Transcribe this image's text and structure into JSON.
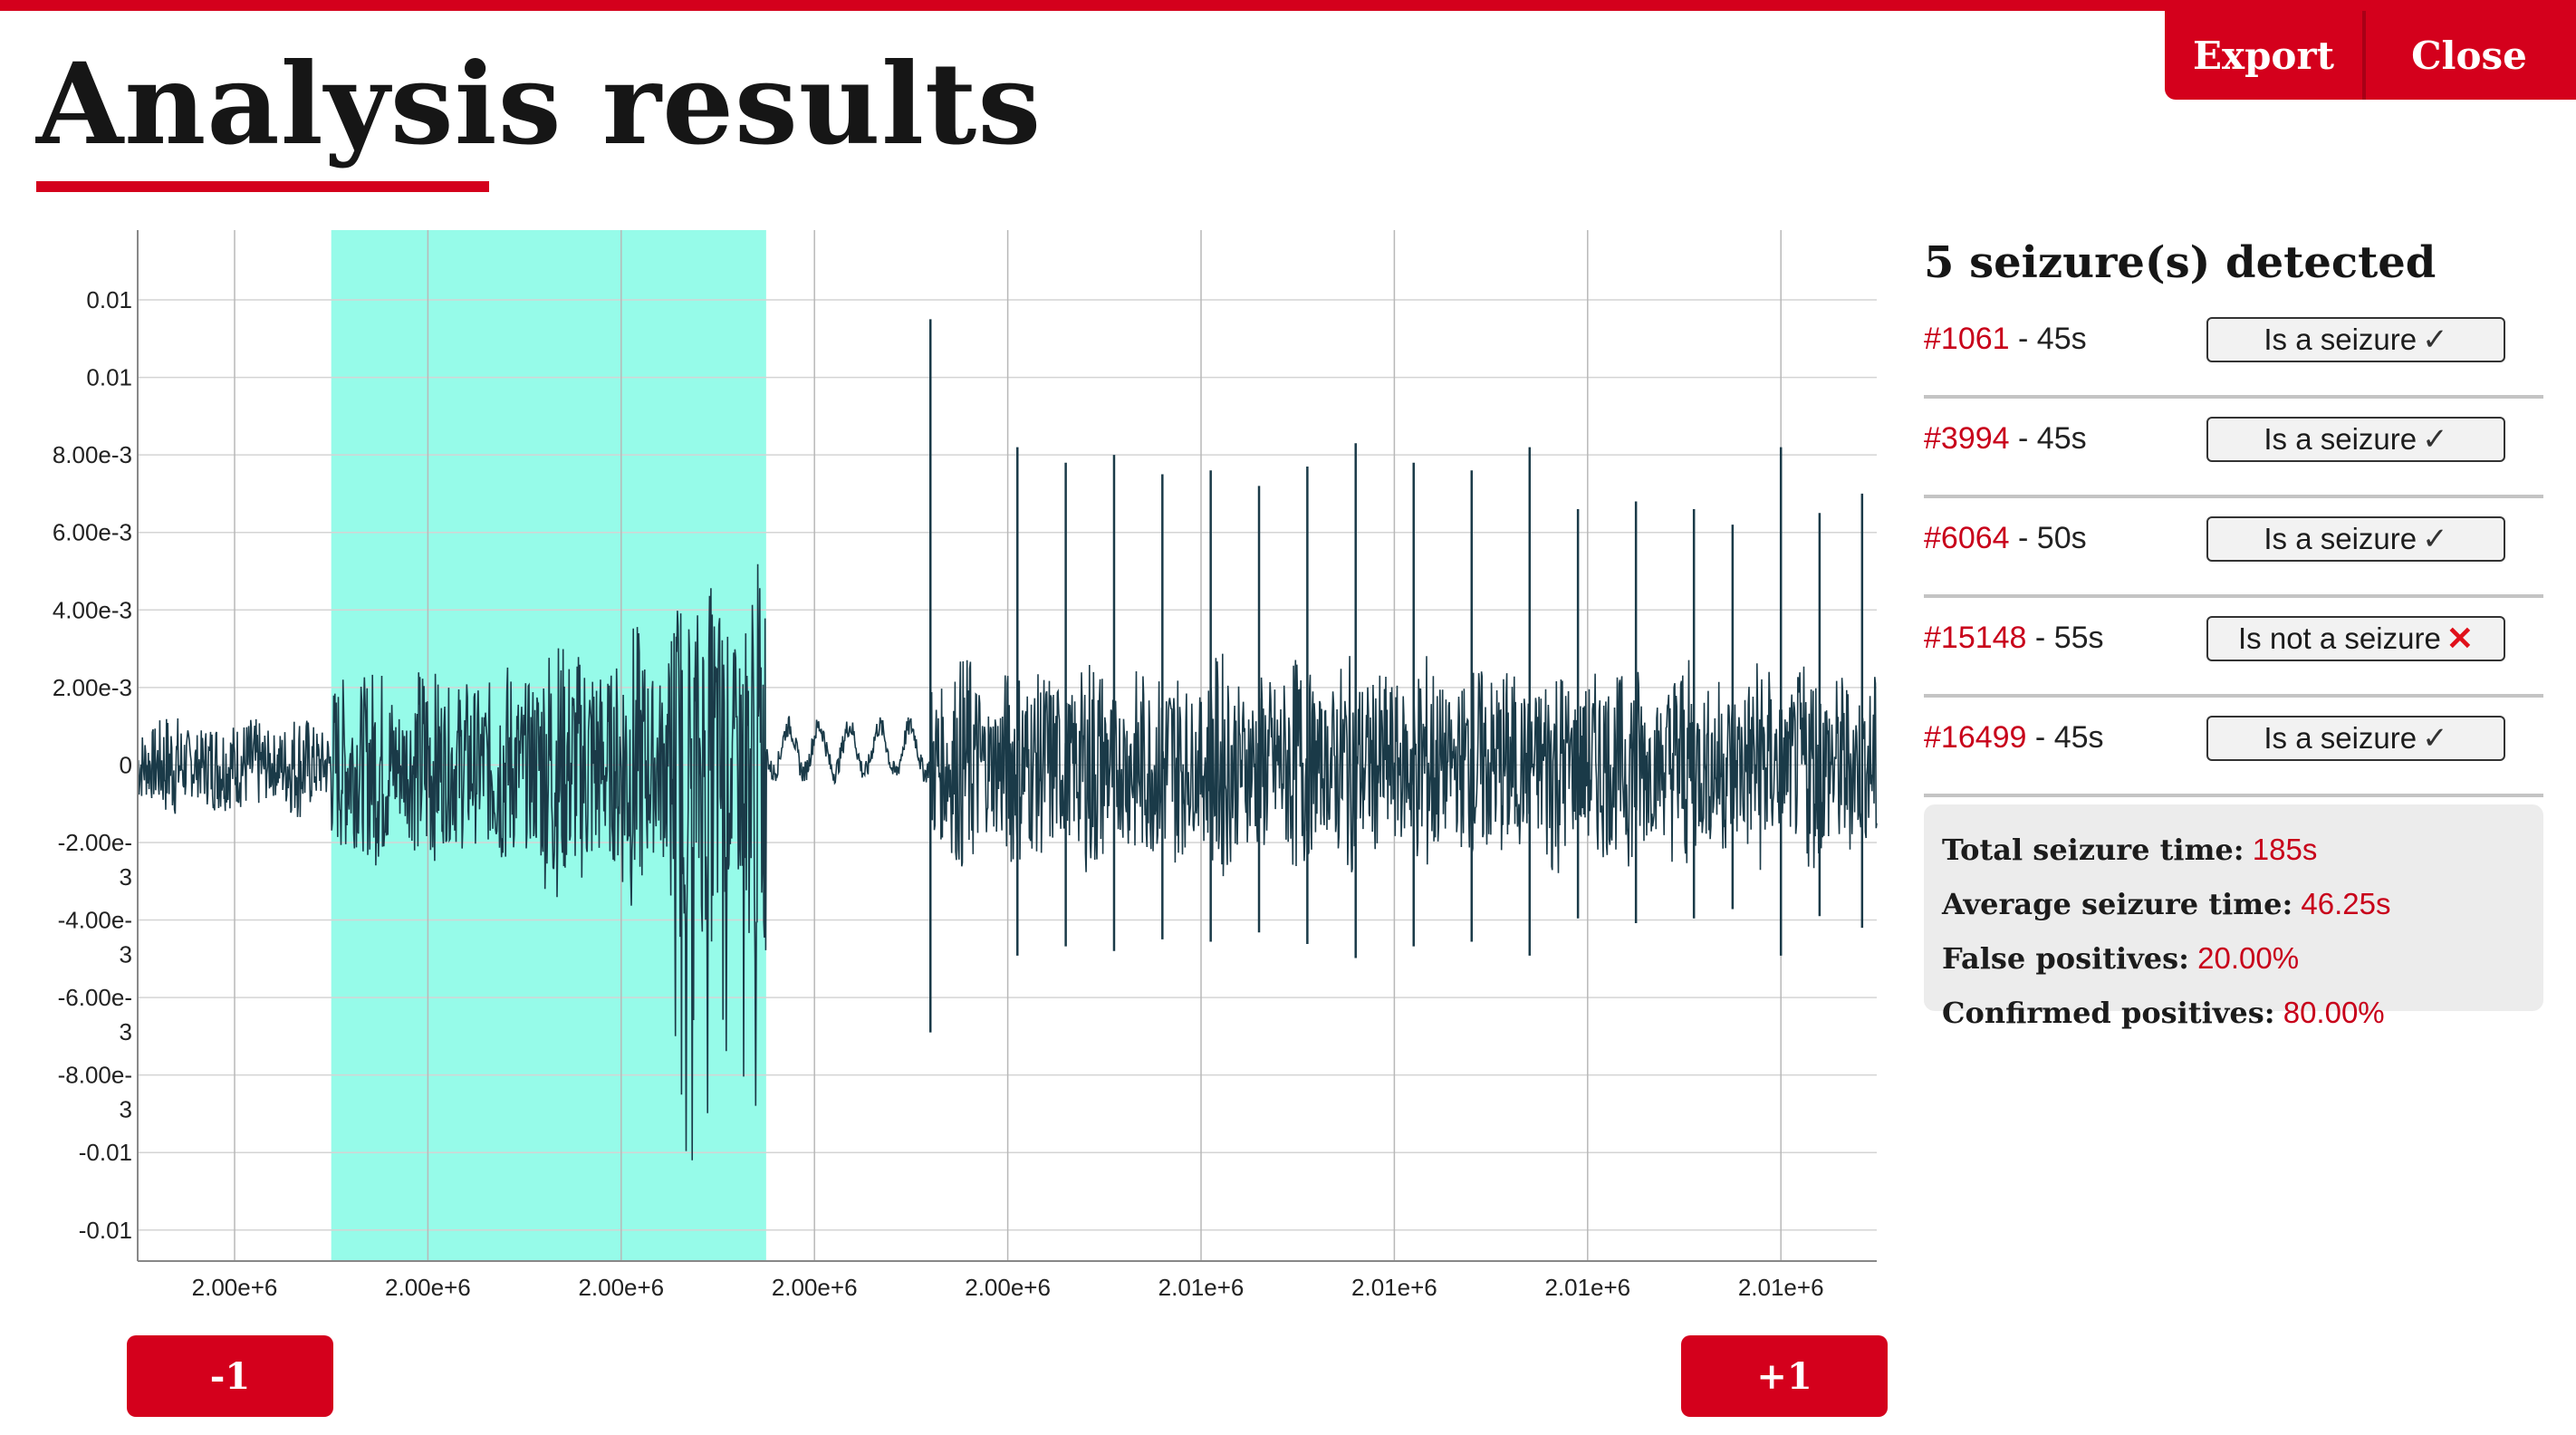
{
  "page": {
    "title": "Analysis results"
  },
  "header": {
    "export_label": "Export",
    "close_label": "Close"
  },
  "navigation": {
    "prev_label": "-1",
    "next_label": "+1"
  },
  "colors": {
    "accent": "#d4001c",
    "signal": "#1a3a48",
    "highlight": "#96fbe9",
    "grid": "#d4d4d4",
    "seizure_id": "#c8001a"
  },
  "chart_data": {
    "type": "line",
    "title": "",
    "xlabel": "",
    "ylabel": "",
    "y_ticks": [
      {
        "value": 0.012,
        "label": "0.01"
      },
      {
        "value": 0.01,
        "label": "0.01"
      },
      {
        "value": 0.008,
        "label": "8.00e-3"
      },
      {
        "value": 0.006,
        "label": "6.00e-3"
      },
      {
        "value": 0.004,
        "label": "4.00e-3"
      },
      {
        "value": 0.002,
        "label": "2.00e-3"
      },
      {
        "value": 0,
        "label": "0"
      },
      {
        "value": -0.002,
        "label": "-2.00e-3"
      },
      {
        "value": -0.004,
        "label": "-4.00e-3"
      },
      {
        "value": -0.006,
        "label": "-6.00e-3"
      },
      {
        "value": -0.008,
        "label": "-8.00e-3"
      },
      {
        "value": -0.01,
        "label": "-0.01"
      },
      {
        "value": -0.012,
        "label": "-0.01"
      }
    ],
    "x_tick_labels": [
      "2.00e+6",
      "2.00e+6",
      "2.00e+6",
      "2.00e+6",
      "2.00e+6",
      "2.01e+6",
      "2.01e+6",
      "2.01e+6",
      "2.01e+6"
    ],
    "grid": true,
    "ylim": [
      -0.0128,
      0.0138
    ],
    "highlighted_region": {
      "tick_range": [
        0.5,
        2.75
      ],
      "label": ""
    },
    "series": [
      {
        "name": "",
        "segments": [
          {
            "tick_range": [
              -0.5,
              0.5
            ],
            "amplitude": 0.0012
          },
          {
            "tick_range": [
              0.5,
              1.5
            ],
            "amplitude": 0.0024
          },
          {
            "tick_range": [
              1.5,
              2.25
            ],
            "amplitude": 0.0032
          },
          {
            "tick_range": [
              2.25,
              2.75
            ],
            "amplitude": 0.0045,
            "negative_extreme": -0.0105
          },
          {
            "tick_range": [
              2.75,
              3.6
            ],
            "amplitude": 0.0007
          },
          {
            "tick_range": [
              3.6,
              8.5
            ],
            "amplitude": 0.0025
          }
        ],
        "spikes": [
          {
            "tick": 3.6,
            "value": 0.0115
          },
          {
            "tick": 4.05,
            "value": 0.0082
          },
          {
            "tick": 4.3,
            "value": 0.0078
          },
          {
            "tick": 4.55,
            "value": 0.008
          },
          {
            "tick": 4.8,
            "value": 0.0075
          },
          {
            "tick": 5.05,
            "value": 0.0076
          },
          {
            "tick": 5.3,
            "value": 0.0072
          },
          {
            "tick": 5.55,
            "value": 0.0077
          },
          {
            "tick": 5.8,
            "value": 0.0083
          },
          {
            "tick": 6.1,
            "value": 0.0078
          },
          {
            "tick": 6.4,
            "value": 0.0076
          },
          {
            "tick": 6.7,
            "value": 0.0082
          },
          {
            "tick": 6.95,
            "value": 0.0066
          },
          {
            "tick": 7.25,
            "value": 0.0068
          },
          {
            "tick": 7.55,
            "value": 0.0066
          },
          {
            "tick": 7.75,
            "value": 0.0062
          },
          {
            "tick": 8.0,
            "value": 0.0082
          },
          {
            "tick": 8.2,
            "value": 0.0065
          },
          {
            "tick": 8.42,
            "value": 0.007
          }
        ]
      }
    ]
  },
  "panel": {
    "heading": "5 seizure(s) detected",
    "separator": "-",
    "seizures": [
      {
        "id": "#1061",
        "duration": "45s",
        "verdict": "Is a seizure",
        "is_seizure": true
      },
      {
        "id": "#3994",
        "duration": "45s",
        "verdict": "Is a seizure",
        "is_seizure": true
      },
      {
        "id": "#6064",
        "duration": "50s",
        "verdict": "Is a seizure",
        "is_seizure": true
      },
      {
        "id": "#15148",
        "duration": "55s",
        "verdict": "Is not a seizure",
        "is_seizure": false
      },
      {
        "id": "#16499",
        "duration": "45s",
        "verdict": "Is a seizure",
        "is_seizure": true
      }
    ],
    "summary": {
      "total_label": "Total seizure time:",
      "total_value": "185s",
      "average_label": "Average seizure time:",
      "average_value": "46.25s",
      "false_label": "False positives:",
      "false_value": "20.00%",
      "confirmed_label": "Confirmed positives:",
      "confirmed_value": "80.00%"
    }
  }
}
